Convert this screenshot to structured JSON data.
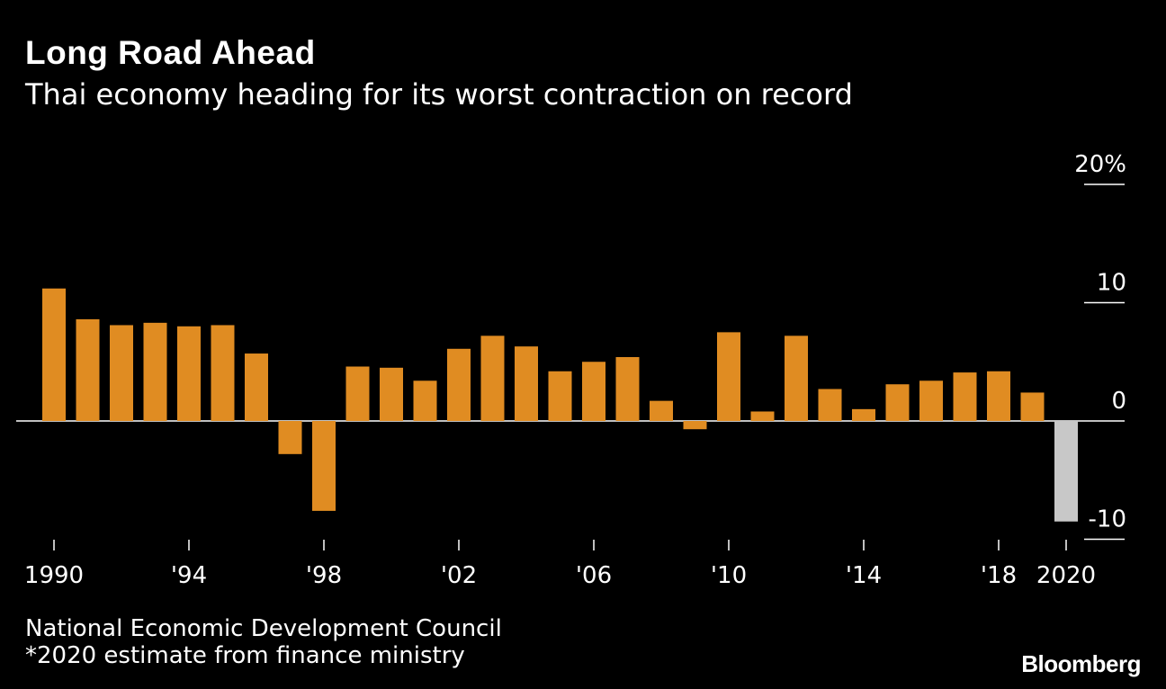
{
  "header": {
    "title": "Long Road Ahead",
    "subtitle": "Thai economy heading for its worst contraction on record"
  },
  "footer": {
    "source_line1": "National Economic Development Council",
    "source_line2": "*2020 estimate from finance ministry",
    "logo": "Bloomberg"
  },
  "colors": {
    "bar": "#e08c22",
    "estimate_bar": "#c8c8c8",
    "background": "#000000",
    "axis": "#ffffff"
  },
  "chart_data": {
    "type": "bar",
    "title": "Long Road Ahead",
    "subtitle": "Thai economy heading for its worst contraction on record",
    "ylabel": "",
    "xlabel": "",
    "ylim": [
      -10,
      20
    ],
    "y_ticks": [
      20,
      10,
      0,
      -10
    ],
    "y_tick_labels": [
      "20%",
      "10",
      "0",
      "-10"
    ],
    "y_axis_side": "right",
    "grid": false,
    "x_tick_years": [
      1990,
      1994,
      1998,
      2002,
      2006,
      2010,
      2014,
      2018,
      2020
    ],
    "x_tick_labels": [
      "1990",
      "'94",
      "'98",
      "'02",
      "'06",
      "'10",
      "'14",
      "'18",
      "2020"
    ],
    "categories": [
      1990,
      1991,
      1992,
      1993,
      1994,
      1995,
      1996,
      1997,
      1998,
      1999,
      2000,
      2001,
      2002,
      2003,
      2004,
      2005,
      2006,
      2007,
      2008,
      2009,
      2010,
      2011,
      2012,
      2013,
      2014,
      2015,
      2016,
      2017,
      2018,
      2019,
      2020
    ],
    "values": [
      11.2,
      8.6,
      8.1,
      8.3,
      8.0,
      8.1,
      5.7,
      -2.8,
      -7.6,
      4.6,
      4.5,
      3.4,
      6.1,
      7.2,
      6.3,
      4.2,
      5.0,
      5.4,
      1.7,
      -0.7,
      7.5,
      0.8,
      7.2,
      2.7,
      1.0,
      3.1,
      3.4,
      4.1,
      4.2,
      2.4,
      -8.5
    ],
    "estimate_years": [
      2020
    ]
  }
}
